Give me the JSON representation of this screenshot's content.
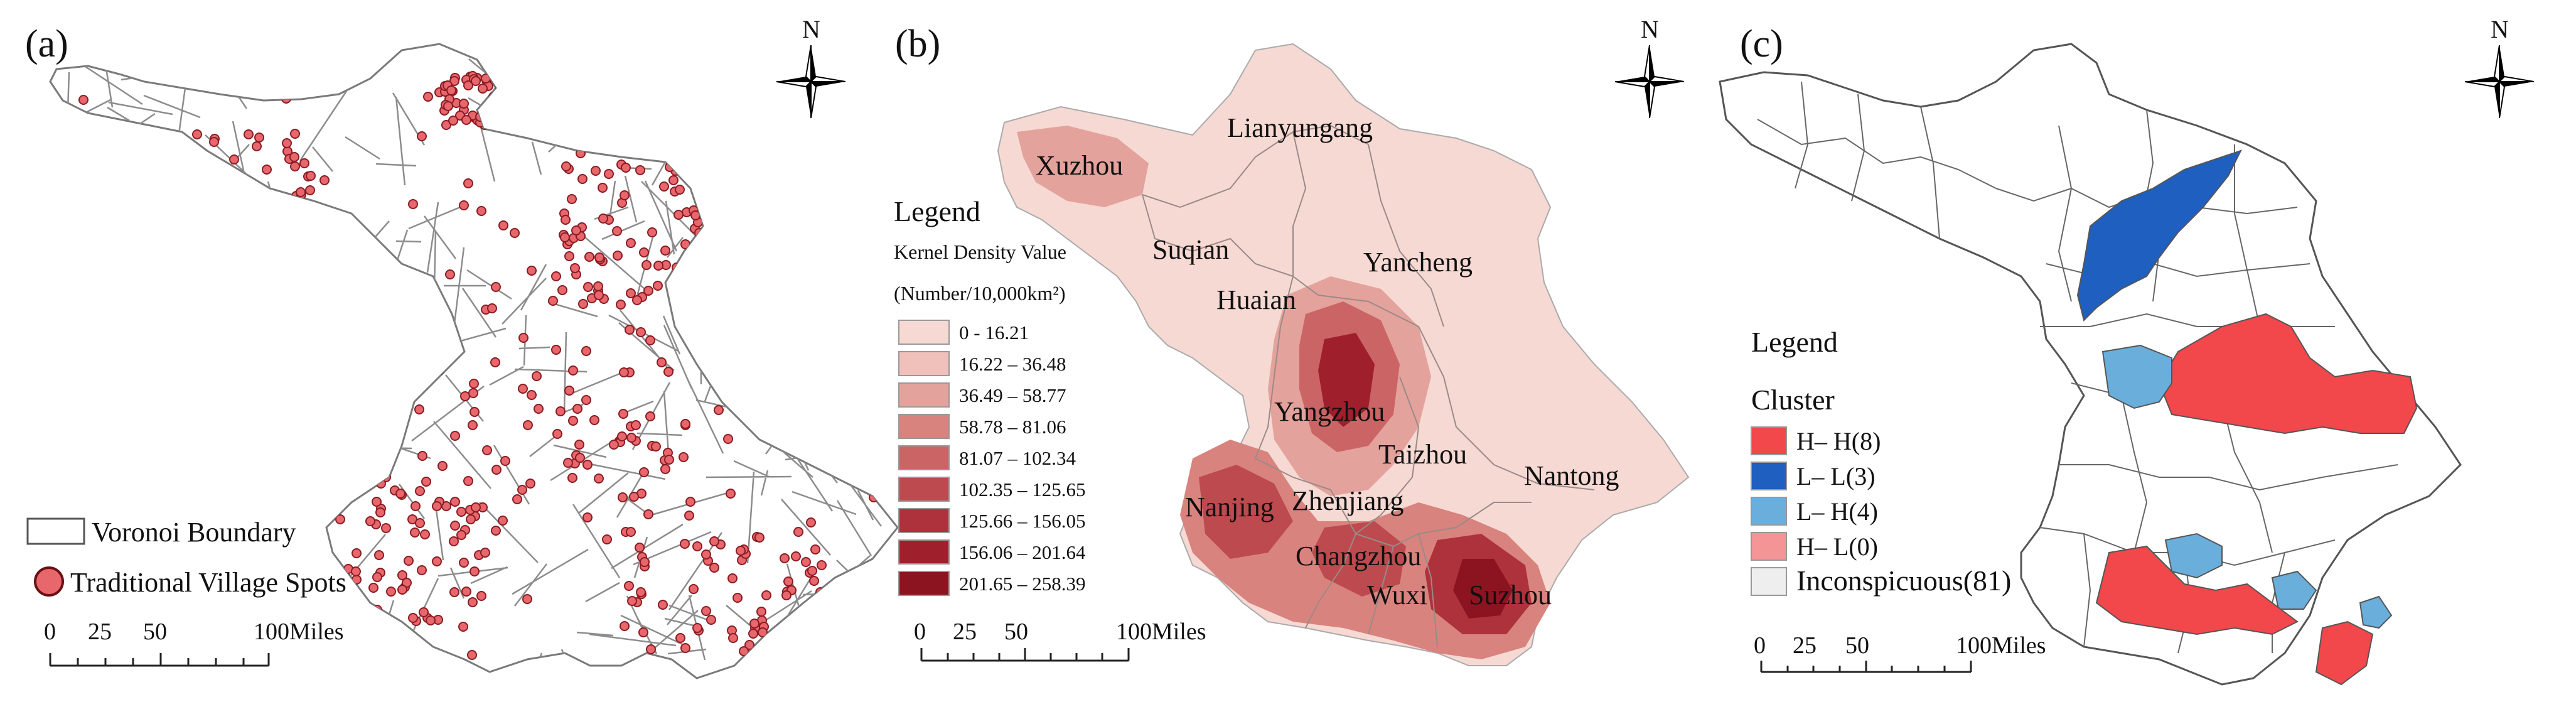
{
  "panels": {
    "a": {
      "label": "(a)",
      "north": "N",
      "legend": {
        "boundary_label": "Voronoi Boundary",
        "spots_label": "Traditional Village Spots"
      },
      "scale": {
        "ticks": [
          "0",
          "25",
          "50",
          "100Miles"
        ]
      },
      "colors": {
        "spot_fill": "#e8676d",
        "spot_stroke": "#8a1c22",
        "boundary": "#8c8c8c"
      }
    },
    "b": {
      "label": "(b)",
      "north": "N",
      "legend": {
        "title": "Legend",
        "subtitle": "Kernel Density Value",
        "unit": "(Number/10,000km²)",
        "classes": [
          {
            "label": "0 - 16.21",
            "color": "#f6d9d3"
          },
          {
            "label": "16.22 – 36.48",
            "color": "#efc1ba"
          },
          {
            "label": "36.49 – 58.77",
            "color": "#e4a29c"
          },
          {
            "label": "58.78 – 81.06",
            "color": "#d8837e"
          },
          {
            "label": "81.07 – 102.34",
            "color": "#cb6565"
          },
          {
            "label": "102.35 – 125.65",
            "color": "#bd4a4e"
          },
          {
            "label": "125.66 – 156.05",
            "color": "#ae323b"
          },
          {
            "label": "156.06 – 201.64",
            "color": "#9f1f2c"
          },
          {
            "label": "201.65 – 258.39",
            "color": "#8c1420"
          }
        ]
      },
      "cities": [
        "Lianyungang",
        "Xuzhou",
        "Suqian",
        "Yancheng",
        "Huaian",
        "Yangzhou",
        "Taizhou",
        "Nantong",
        "Nanjing",
        "Zhenjiang",
        "Changzhou",
        "Wuxi",
        "Suzhou"
      ],
      "scale": {
        "ticks": [
          "0",
          "25",
          "50",
          "100Miles"
        ]
      }
    },
    "c": {
      "label": "(c)",
      "north": "N",
      "legend": {
        "title": "Legend",
        "subtitle": "Cluster",
        "classes": [
          {
            "label": "H– H(8)",
            "color": "#f2474b"
          },
          {
            "label": "L– L(3)",
            "color": "#1f5fbf"
          },
          {
            "label": "L– H(4)",
            "color": "#6aaedc"
          },
          {
            "label": "H– L(0)",
            "color": "#f49496"
          },
          {
            "label": "Inconspicuous(81)",
            "color": "#eeeeee"
          }
        ]
      },
      "scale": {
        "ticks": [
          "0",
          "25",
          "50",
          "100Miles"
        ]
      }
    }
  }
}
